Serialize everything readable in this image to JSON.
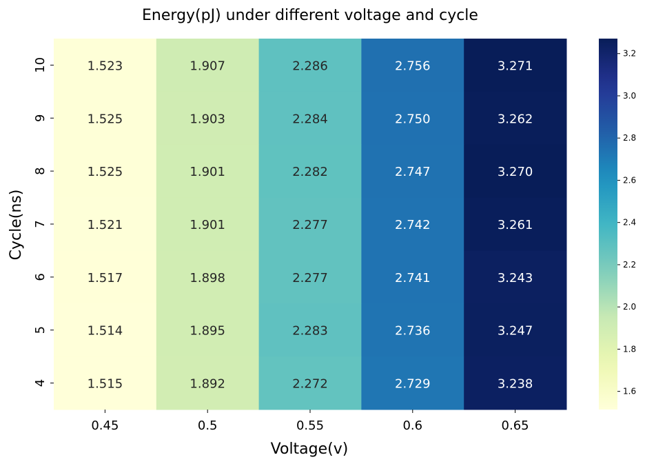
{
  "chart_data": {
    "type": "heatmap",
    "title": "Energy(pJ) under different voltage and cycle",
    "xlabel": "Voltage(v)",
    "ylabel": "Cycle(ns)",
    "x_categories": [
      "0.45",
      "0.5",
      "0.55",
      "0.6",
      "0.65"
    ],
    "y_categories": [
      "10",
      "9",
      "8",
      "7",
      "6",
      "5",
      "4"
    ],
    "values": [
      [
        1.523,
        1.907,
        2.286,
        2.756,
        3.271
      ],
      [
        1.525,
        1.903,
        2.284,
        2.75,
        3.262
      ],
      [
        1.525,
        1.901,
        2.282,
        2.747,
        3.27
      ],
      [
        1.521,
        1.901,
        2.277,
        2.742,
        3.261
      ],
      [
        1.517,
        1.898,
        2.277,
        2.741,
        3.243
      ],
      [
        1.514,
        1.895,
        2.283,
        2.736,
        3.247
      ],
      [
        1.515,
        1.892,
        2.272,
        2.729,
        3.238
      ]
    ],
    "value_labels": [
      [
        "1.523",
        "1.907",
        "2.286",
        "2.756",
        "3.271"
      ],
      [
        "1.525",
        "1.903",
        "2.284",
        "2.750",
        "3.262"
      ],
      [
        "1.525",
        "1.901",
        "2.282",
        "2.747",
        "3.270"
      ],
      [
        "1.521",
        "1.901",
        "2.277",
        "2.742",
        "3.261"
      ],
      [
        "1.517",
        "1.898",
        "2.277",
        "2.741",
        "3.243"
      ],
      [
        "1.514",
        "1.895",
        "2.283",
        "2.736",
        "3.247"
      ],
      [
        "1.515",
        "1.892",
        "2.272",
        "2.729",
        "3.238"
      ]
    ],
    "colormap": "YlGnBu",
    "colorbar": {
      "range": [
        1.514,
        3.271
      ],
      "ticks": [
        "1.6",
        "1.8",
        "2.0",
        "2.2",
        "2.4",
        "2.6",
        "2.8",
        "3.0",
        "3.2"
      ]
    }
  }
}
